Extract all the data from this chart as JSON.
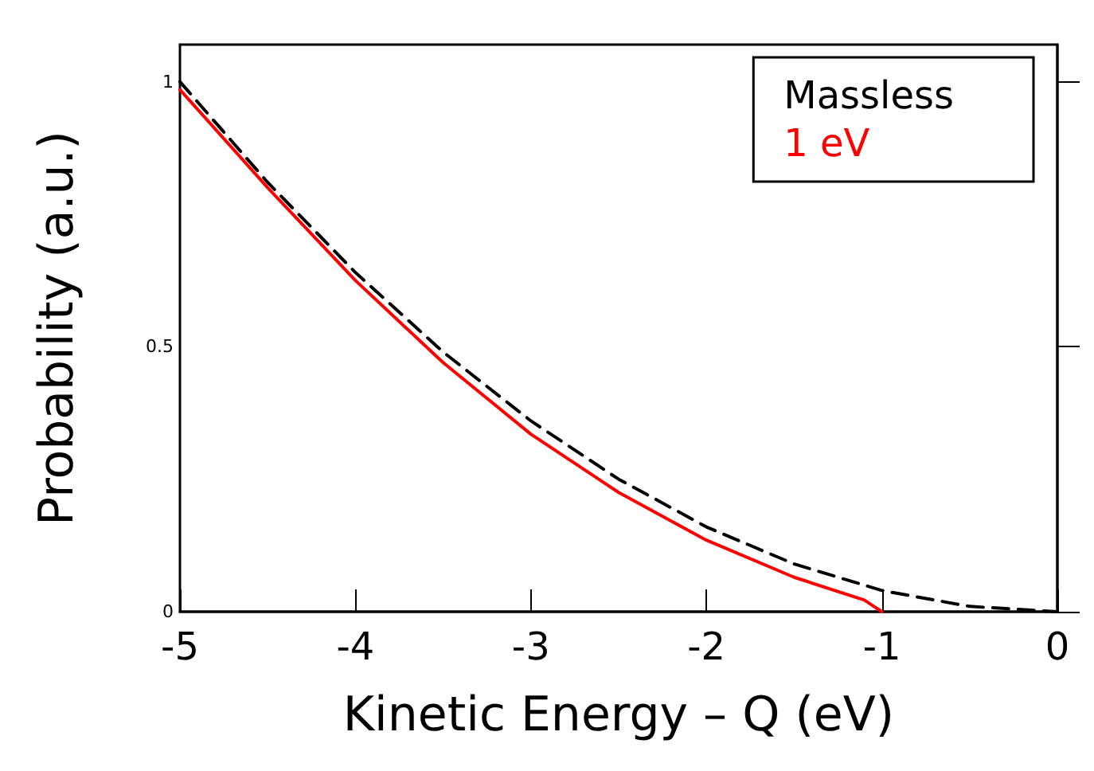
{
  "chart_data": {
    "type": "line",
    "xlabel": "Kinetic Energy – Q (eV)",
    "ylabel": "Probability (a.u.)",
    "xlim": [
      -5,
      0
    ],
    "xticks": [
      -5,
      -4,
      -3,
      -2,
      -1,
      0
    ],
    "ylim": [
      0,
      1.07
    ],
    "yticks": [
      0,
      0.5,
      1
    ],
    "grid": false,
    "legend": "top right",
    "marker": "none",
    "series": [
      {
        "name": "Massless",
        "color": "#000000",
        "line_style": "dashed",
        "x": [
          -5,
          -4.5,
          -4,
          -3.5,
          -3,
          -2.5,
          -2,
          -1.5,
          -1,
          -0.5,
          0
        ],
        "values": [
          1,
          0.81,
          0.64,
          0.49,
          0.36,
          0.25,
          0.16,
          0.09,
          0.04,
          0.01,
          0
        ]
      },
      {
        "name": "1 eV",
        "color": "#ff0000",
        "line_style": "solid",
        "x": [
          -5,
          -4.5,
          -4,
          -3.5,
          -3,
          -2.5,
          -2,
          -1.5,
          -1.1,
          -1.0
        ],
        "values": [
          0.985,
          0.8,
          0.625,
          0.47,
          0.335,
          0.225,
          0.135,
          0.065,
          0.022,
          0
        ]
      }
    ]
  }
}
